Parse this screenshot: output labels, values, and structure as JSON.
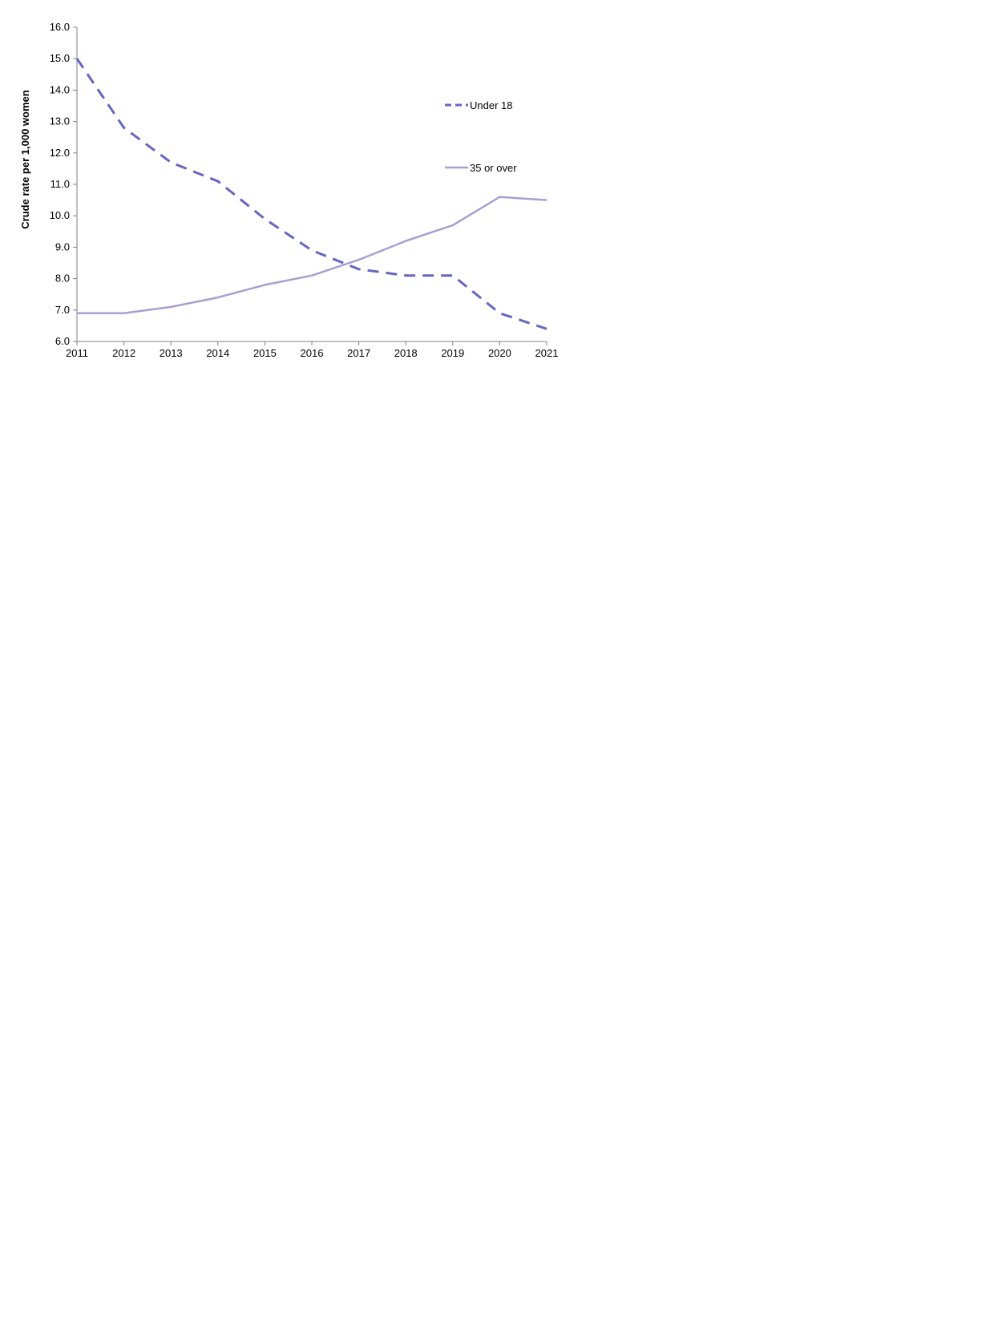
{
  "chart_data": {
    "type": "line",
    "title": "",
    "xlabel": "",
    "ylabel": "Crude rate per 1,000 women",
    "categories": [
      "2011",
      "2012",
      "2013",
      "2014",
      "2015",
      "2016",
      "2017",
      "2018",
      "2019",
      "2020",
      "2021"
    ],
    "y_ticks": [
      "6.0",
      "7.0",
      "8.0",
      "9.0",
      "10.0",
      "11.0",
      "12.0",
      "13.0",
      "14.0",
      "15.0",
      "16.0"
    ],
    "ylim": [
      6,
      16
    ],
    "grid": false,
    "legend_position": "top-right",
    "series": [
      {
        "name": "Under 18",
        "style": "dashed",
        "color": "#6666c2",
        "values": [
          15.0,
          12.8,
          11.7,
          11.1,
          9.9,
          8.9,
          8.3,
          8.1,
          8.1,
          6.9,
          6.4
        ]
      },
      {
        "name": "35 or over",
        "style": "solid",
        "color": "#a6a0d2",
        "values": [
          6.9,
          6.9,
          7.1,
          7.4,
          7.8,
          8.1,
          8.6,
          9.2,
          9.7,
          10.6,
          10.5
        ]
      }
    ]
  }
}
